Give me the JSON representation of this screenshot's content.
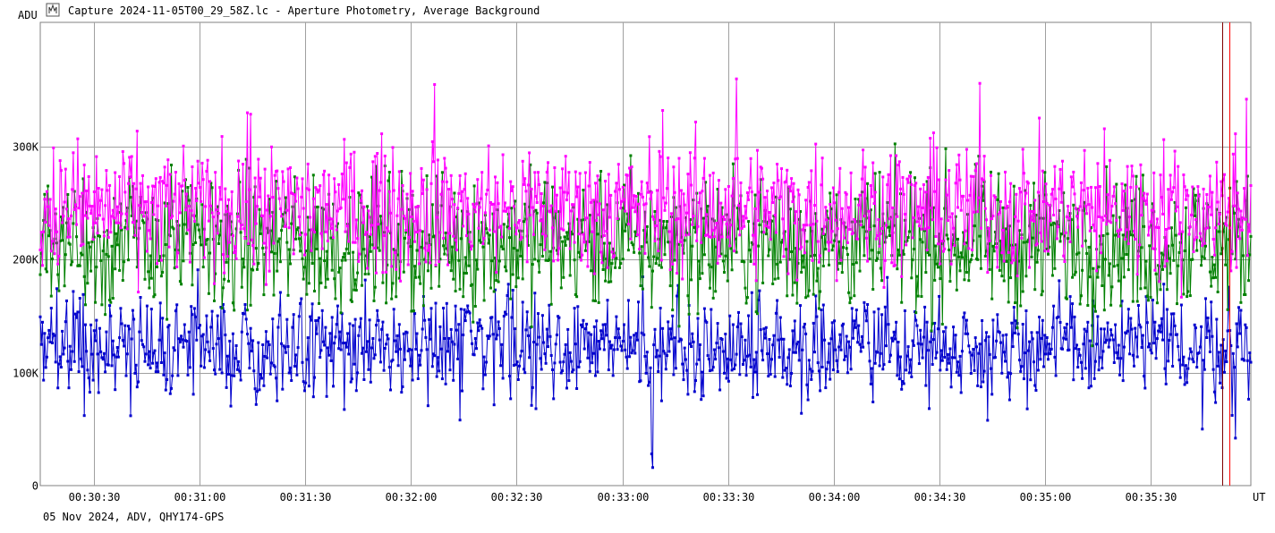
{
  "header": {
    "title": "Capture 2024-11-05T00_29_58Z.lc - Aperture Photometry, Average Background",
    "icon": "lightcurve-window-icon"
  },
  "footer": {
    "info": "05 Nov 2024, ADV, QHY174-GPS"
  },
  "chart_data": {
    "type": "line",
    "title": "Capture 2024-11-05T00_29_58Z.lc - Aperture Photometry, Average Background",
    "ylabel": "ADU",
    "xlabel": "UT",
    "ylim": [
      0,
      410000
    ],
    "xlim_seconds": [
      1814.8,
      2158.4
    ],
    "y_ticks": [
      {
        "value": 0,
        "label": "0"
      },
      {
        "value": 100000,
        "label": "100K"
      },
      {
        "value": 200000,
        "label": "200K"
      },
      {
        "value": 300000,
        "label": "300K"
      }
    ],
    "x_ticks": [
      {
        "value": 1830,
        "label": "00:30:30"
      },
      {
        "value": 1860,
        "label": "00:31:00"
      },
      {
        "value": 1890,
        "label": "00:31:30"
      },
      {
        "value": 1920,
        "label": "00:32:00"
      },
      {
        "value": 1950,
        "label": "00:32:30"
      },
      {
        "value": 1980,
        "label": "00:33:00"
      },
      {
        "value": 2010,
        "label": "00:33:30"
      },
      {
        "value": 2040,
        "label": "00:34:00"
      },
      {
        "value": 2070,
        "label": "00:34:30"
      },
      {
        "value": 2100,
        "label": "00:35:00"
      },
      {
        "value": 2130,
        "label": "00:35:30"
      }
    ],
    "grid": true,
    "markers": true,
    "point_count": 1100,
    "series": [
      {
        "color": "#ff00ff",
        "mean": 245000,
        "spread": 28000,
        "spikes": [
          {
            "t": 1926.8,
            "y": 355000
          },
          {
            "t": 2012.4,
            "y": 360000
          },
          {
            "t": 2081.6,
            "y": 356000
          },
          {
            "t": 2157.2,
            "y": 342000
          },
          {
            "t": 1873.5,
            "y": 330000
          },
          {
            "t": 1991.6,
            "y": 332000
          }
        ]
      },
      {
        "color": "#008000",
        "mean": 215000,
        "spread": 30000,
        "spikes": []
      },
      {
        "color": "#0000cd",
        "mean": 123000,
        "spread": 22000,
        "spikes": [
          {
            "t": 1988.6,
            "y": 16000
          },
          {
            "t": 1988.3,
            "y": 28000
          },
          {
            "t": 2154.0,
            "y": 42000
          },
          {
            "t": 2144.6,
            "y": 50000
          },
          {
            "t": 1934.0,
            "y": 58000
          },
          {
            "t": 1827.2,
            "y": 62000
          }
        ]
      }
    ],
    "cursor_lines": [
      {
        "seconds": 2150.2,
        "color": "#7f0000"
      },
      {
        "seconds": 2152.4,
        "color": "#ff0000"
      }
    ]
  }
}
